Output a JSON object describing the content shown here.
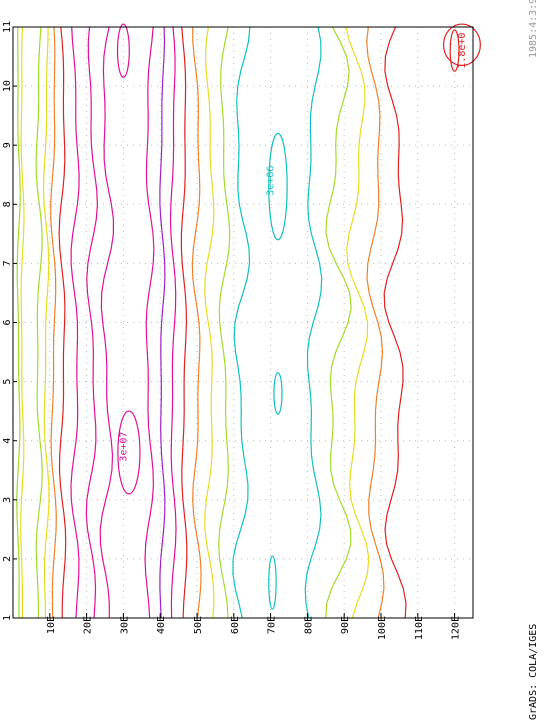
{
  "chart_data": {
    "type": "contour",
    "title": "",
    "xlabel": "",
    "ylabel": "",
    "x_ticks": [
      "1",
      "2",
      "3",
      "4",
      "5",
      "6",
      "7",
      "8",
      "9",
      "10",
      "11"
    ],
    "y_ticks": [
      "10E",
      "20E",
      "30E",
      "40E",
      "50E",
      "60E",
      "70E",
      "80E",
      "90E",
      "100E",
      "110E",
      "120E"
    ],
    "xlim": [
      1,
      11
    ],
    "ylim": [
      0,
      125
    ],
    "grid": true,
    "contour_labels": [
      {
        "text": "3e+07",
        "x": 3.9,
        "y": 30,
        "color": "#e0109a"
      },
      {
        "text": "3e+06",
        "x": 8.4,
        "y": 70,
        "color": "#10c0c0"
      },
      {
        "text": "1.8e+0",
        "x": 10.6,
        "y": 122,
        "color": "#e02020"
      }
    ],
    "levels": [
      {
        "color": "#a0dc28",
        "y": 1.5,
        "amp": 0.3
      },
      {
        "color": "#e8dc20",
        "y": 2.5,
        "amp": 0.3
      },
      {
        "color": "#a0dc28",
        "y": 7,
        "amp": 0.6
      },
      {
        "color": "#e8dc20",
        "y": 9,
        "amp": 0.5
      },
      {
        "color": "#f08028",
        "y": 11,
        "amp": 0.5
      },
      {
        "color": "#e02020",
        "y": 13.5,
        "amp": 0.6
      },
      {
        "color": "#e0109a",
        "y": 17,
        "amp": 0.8
      },
      {
        "color": "#e0109a",
        "y": 21.5,
        "amp": 1.0
      },
      {
        "color": "#e0109a",
        "y": 25.5,
        "amp": 1.2
      },
      {
        "color": "#e0109a",
        "y": 37,
        "amp": 0.8
      },
      {
        "color": "#a020c8",
        "y": 40.5,
        "amp": 0.5
      },
      {
        "color": "#e0109a",
        "y": 43.5,
        "amp": 0.5
      },
      {
        "color": "#e02020",
        "y": 46.5,
        "amp": 0.5
      },
      {
        "color": "#f08028",
        "y": 50,
        "amp": 0.8
      },
      {
        "color": "#e8dc20",
        "y": 53.5,
        "amp": 0.9
      },
      {
        "color": "#a0dc28",
        "y": 57.5,
        "amp": 1.0
      },
      {
        "color": "#10c0c0",
        "y": 62,
        "amp": 1.5
      },
      {
        "color": "#10c0c0",
        "y": 81.5,
        "amp": 1.5
      },
      {
        "color": "#a0dc28",
        "y": 88,
        "amp": 2.5
      },
      {
        "color": "#e8dc20",
        "y": 93.5,
        "amp": 2.0
      },
      {
        "color": "#f08028",
        "y": 98.5,
        "amp": 1.5
      },
      {
        "color": "#e02020",
        "y": 104,
        "amp": 2.0
      }
    ],
    "closed_contours": [
      {
        "color": "#e02020",
        "cx": 10.7,
        "cy": 122,
        "rx": 0.35,
        "ry": 5
      },
      {
        "color": "#e02020",
        "cx": 10.6,
        "cy": 120,
        "rx": 0.35,
        "ry": 1.2
      },
      {
        "color": "#10c0c0",
        "cx": 8.3,
        "cy": 72,
        "rx": 0.9,
        "ry": 2.5
      },
      {
        "color": "#10c0c0",
        "cx": 4.8,
        "cy": 72,
        "rx": 0.35,
        "ry": 1.1
      },
      {
        "color": "#10c0c0",
        "cx": 1.6,
        "cy": 70.5,
        "rx": 0.45,
        "ry": 1.0
      },
      {
        "color": "#e0109a",
        "cx": 3.8,
        "cy": 31.5,
        "rx": 0.7,
        "ry": 3.0
      },
      {
        "color": "#e0109a",
        "cx": 10.6,
        "cy": 30,
        "rx": 0.45,
        "ry": 1.6
      }
    ]
  },
  "footer": {
    "left": "GrADS: COLA/IGES",
    "right": "1985:4:3:9"
  }
}
